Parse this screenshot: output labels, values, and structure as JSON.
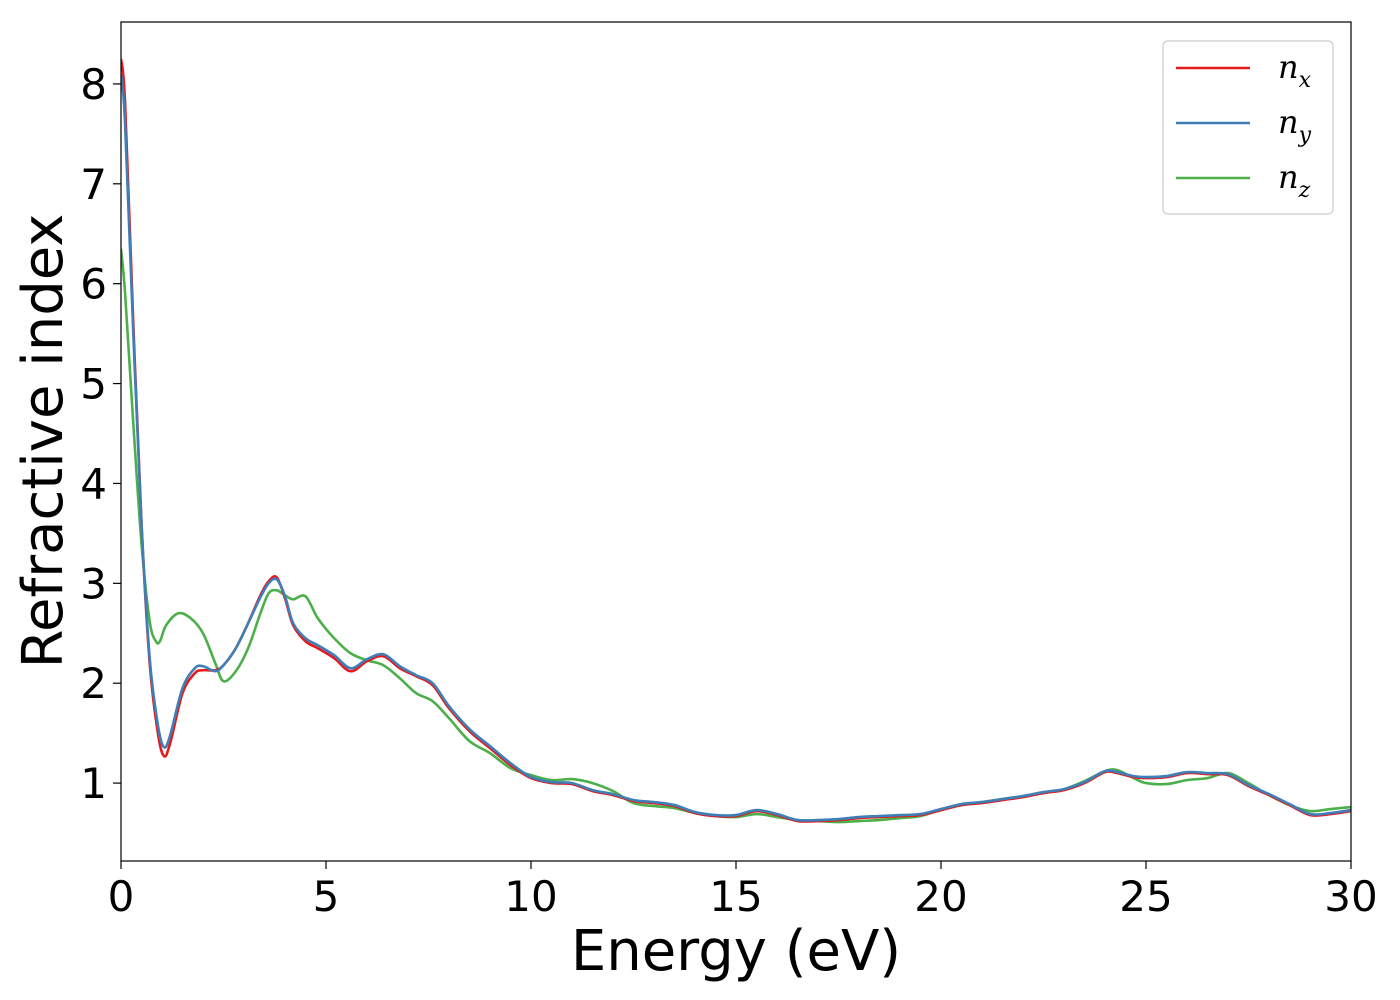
{
  "chart_data": {
    "type": "line",
    "xlabel": "Energy (eV)",
    "ylabel": "Refractive index",
    "xlim": [
      0,
      30
    ],
    "ylim": [
      0.22,
      8.62
    ],
    "x_ticks": [
      "0",
      "5",
      "10",
      "15",
      "20",
      "25",
      "30"
    ],
    "y_ticks": [
      "1",
      "2",
      "3",
      "4",
      "5",
      "6",
      "7",
      "8"
    ],
    "grid": false,
    "legend_position": "top-right",
    "series": [
      {
        "name": "n",
        "subscript": "x",
        "color": "#e41a1c",
        "x": [
          0,
          0.1,
          0.3,
          0.5,
          0.7,
          0.9,
          1.05,
          1.2,
          1.5,
          1.8,
          2.0,
          2.3,
          2.5,
          2.8,
          3.1,
          3.4,
          3.6,
          3.8,
          4.0,
          4.2,
          4.5,
          4.8,
          5.2,
          5.6,
          6.0,
          6.4,
          6.8,
          7.2,
          7.6,
          8.0,
          8.5,
          9.0,
          9.5,
          10.0,
          10.5,
          11.0,
          11.5,
          12.0,
          12.5,
          13.0,
          13.5,
          14.0,
          14.5,
          15.0,
          15.5,
          16.0,
          16.5,
          17.0,
          17.5,
          18.0,
          18.5,
          19.0,
          19.5,
          20.0,
          20.5,
          21.0,
          21.5,
          22.0,
          22.5,
          23.0,
          23.5,
          24.0,
          24.3,
          24.7,
          25.0,
          25.5,
          26.0,
          26.5,
          27.0,
          27.5,
          28.0,
          28.5,
          29.0,
          29.5,
          30.0
        ],
        "y": [
          8.25,
          7.8,
          5.6,
          3.6,
          2.2,
          1.5,
          1.27,
          1.4,
          1.9,
          2.1,
          2.13,
          2.13,
          2.18,
          2.35,
          2.6,
          2.88,
          3.02,
          3.06,
          2.85,
          2.58,
          2.42,
          2.35,
          2.25,
          2.12,
          2.22,
          2.27,
          2.15,
          2.07,
          1.98,
          1.75,
          1.52,
          1.35,
          1.18,
          1.05,
          1.0,
          0.99,
          0.92,
          0.88,
          0.82,
          0.8,
          0.77,
          0.7,
          0.67,
          0.67,
          0.72,
          0.68,
          0.62,
          0.62,
          0.63,
          0.65,
          0.66,
          0.67,
          0.68,
          0.73,
          0.78,
          0.8,
          0.83,
          0.86,
          0.9,
          0.93,
          1.0,
          1.11,
          1.1,
          1.06,
          1.05,
          1.06,
          1.1,
          1.09,
          1.08,
          0.97,
          0.88,
          0.78,
          0.68,
          0.69,
          0.72
        ]
      },
      {
        "name": "n",
        "subscript": "y",
        "color": "#3f7fb8",
        "x": [
          0,
          0.1,
          0.3,
          0.5,
          0.7,
          0.9,
          1.05,
          1.2,
          1.5,
          1.8,
          2.0,
          2.3,
          2.5,
          2.8,
          3.1,
          3.4,
          3.6,
          3.8,
          4.0,
          4.2,
          4.5,
          4.8,
          5.2,
          5.6,
          6.0,
          6.4,
          6.8,
          7.2,
          7.6,
          8.0,
          8.5,
          9.0,
          9.5,
          10.0,
          10.5,
          11.0,
          11.5,
          12.0,
          12.5,
          13.0,
          13.5,
          14.0,
          14.5,
          15.0,
          15.5,
          16.0,
          16.5,
          17.0,
          17.5,
          18.0,
          18.5,
          19.0,
          19.5,
          20.0,
          20.5,
          21.0,
          21.5,
          22.0,
          22.5,
          23.0,
          23.5,
          24.0,
          24.3,
          24.7,
          25.0,
          25.5,
          26.0,
          26.5,
          27.0,
          27.5,
          28.0,
          28.5,
          29.0,
          29.5,
          30.0
        ],
        "y": [
          8.1,
          7.6,
          5.5,
          3.6,
          2.25,
          1.58,
          1.36,
          1.48,
          1.95,
          2.15,
          2.17,
          2.12,
          2.18,
          2.35,
          2.6,
          2.86,
          3.0,
          3.04,
          2.87,
          2.6,
          2.45,
          2.38,
          2.28,
          2.15,
          2.24,
          2.29,
          2.17,
          2.08,
          2.0,
          1.77,
          1.54,
          1.37,
          1.2,
          1.06,
          1.01,
          1.0,
          0.93,
          0.89,
          0.83,
          0.81,
          0.78,
          0.71,
          0.68,
          0.68,
          0.73,
          0.69,
          0.63,
          0.63,
          0.64,
          0.66,
          0.67,
          0.68,
          0.69,
          0.74,
          0.79,
          0.81,
          0.84,
          0.87,
          0.91,
          0.94,
          1.01,
          1.12,
          1.11,
          1.07,
          1.06,
          1.07,
          1.11,
          1.1,
          1.09,
          0.98,
          0.89,
          0.79,
          0.69,
          0.7,
          0.73
        ]
      },
      {
        "name": "n",
        "subscript": "z",
        "color": "#4daf4a",
        "x": [
          0,
          0.1,
          0.3,
          0.5,
          0.7,
          0.85,
          0.95,
          1.1,
          1.4,
          1.7,
          2.0,
          2.3,
          2.5,
          2.8,
          3.1,
          3.4,
          3.6,
          3.8,
          4.0,
          4.2,
          4.5,
          4.8,
          5.2,
          5.6,
          6.0,
          6.4,
          6.8,
          7.2,
          7.6,
          8.0,
          8.5,
          9.0,
          9.5,
          10.0,
          10.5,
          11.0,
          11.5,
          12.0,
          12.5,
          13.0,
          13.5,
          14.0,
          14.5,
          15.0,
          15.5,
          16.0,
          16.5,
          17.0,
          17.5,
          18.0,
          18.5,
          19.0,
          19.5,
          20.0,
          20.5,
          21.0,
          21.5,
          22.0,
          22.5,
          23.0,
          23.5,
          24.0,
          24.3,
          24.7,
          25.0,
          25.5,
          26.0,
          26.5,
          27.0,
          27.5,
          28.0,
          28.5,
          29.0,
          29.5,
          30.0
        ],
        "y": [
          6.35,
          5.9,
          4.6,
          3.4,
          2.62,
          2.42,
          2.42,
          2.58,
          2.7,
          2.65,
          2.5,
          2.2,
          2.02,
          2.12,
          2.35,
          2.7,
          2.9,
          2.93,
          2.88,
          2.84,
          2.87,
          2.65,
          2.45,
          2.3,
          2.23,
          2.18,
          2.05,
          1.9,
          1.82,
          1.65,
          1.42,
          1.3,
          1.15,
          1.08,
          1.03,
          1.04,
          1.0,
          0.92,
          0.8,
          0.77,
          0.75,
          0.7,
          0.67,
          0.66,
          0.69,
          0.66,
          0.63,
          0.62,
          0.61,
          0.62,
          0.63,
          0.65,
          0.67,
          0.73,
          0.78,
          0.81,
          0.84,
          0.87,
          0.9,
          0.94,
          1.02,
          1.12,
          1.13,
          1.05,
          1.0,
          0.99,
          1.03,
          1.05,
          1.1,
          1.0,
          0.88,
          0.78,
          0.72,
          0.74,
          0.76
        ]
      }
    ]
  }
}
